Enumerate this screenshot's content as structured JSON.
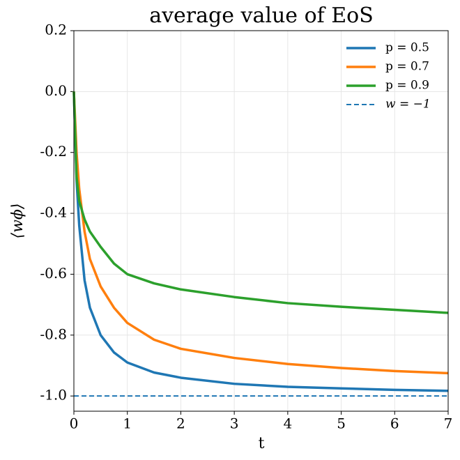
{
  "chart_data": {
    "type": "line",
    "title": "average value of EoS",
    "x_label": "t",
    "y_label": "⟨wϕ⟩",
    "x": [
      0,
      0.05,
      0.1,
      0.2,
      0.3,
      0.5,
      0.75,
      1,
      1.5,
      2,
      3,
      4,
      5,
      6,
      7
    ],
    "series": [
      {
        "name": "p = 0.5",
        "color": "#1f77b4",
        "values": [
          0,
          -0.29,
          -0.44,
          -0.62,
          -0.71,
          -0.8,
          -0.857,
          -0.89,
          -0.923,
          -0.94,
          -0.96,
          -0.97,
          -0.975,
          -0.98,
          -0.983
        ]
      },
      {
        "name": "p = 0.7",
        "color": "#ff7f0e",
        "values": [
          0,
          -0.2,
          -0.32,
          -0.46,
          -0.55,
          -0.64,
          -0.71,
          -0.76,
          -0.815,
          -0.845,
          -0.875,
          -0.895,
          -0.908,
          -0.918,
          -0.925
        ]
      },
      {
        "name": "p = 0.9",
        "color": "#2ca02c",
        "values": [
          0,
          -0.28,
          -0.36,
          -0.42,
          -0.46,
          -0.51,
          -0.565,
          -0.6,
          -0.63,
          -0.65,
          -0.675,
          -0.695,
          -0.707,
          -0.717,
          -0.727
        ]
      }
    ],
    "reference_line": {
      "name": "w = −1",
      "value": -1,
      "color": "#1f77b4",
      "style": "dashed"
    },
    "xlim": [
      0,
      7
    ],
    "xticks": [
      0,
      1,
      2,
      3,
      4,
      5,
      6,
      7
    ],
    "ylim": [
      -1.05,
      0.2
    ],
    "yticks": [
      {
        "value": -1,
        "label": "-1.0"
      },
      -0.8,
      -0.6,
      -0.4,
      -0.2,
      {
        "value": 0,
        "label": "0.0"
      },
      0.2
    ],
    "grid": true,
    "legend": "upper right"
  }
}
